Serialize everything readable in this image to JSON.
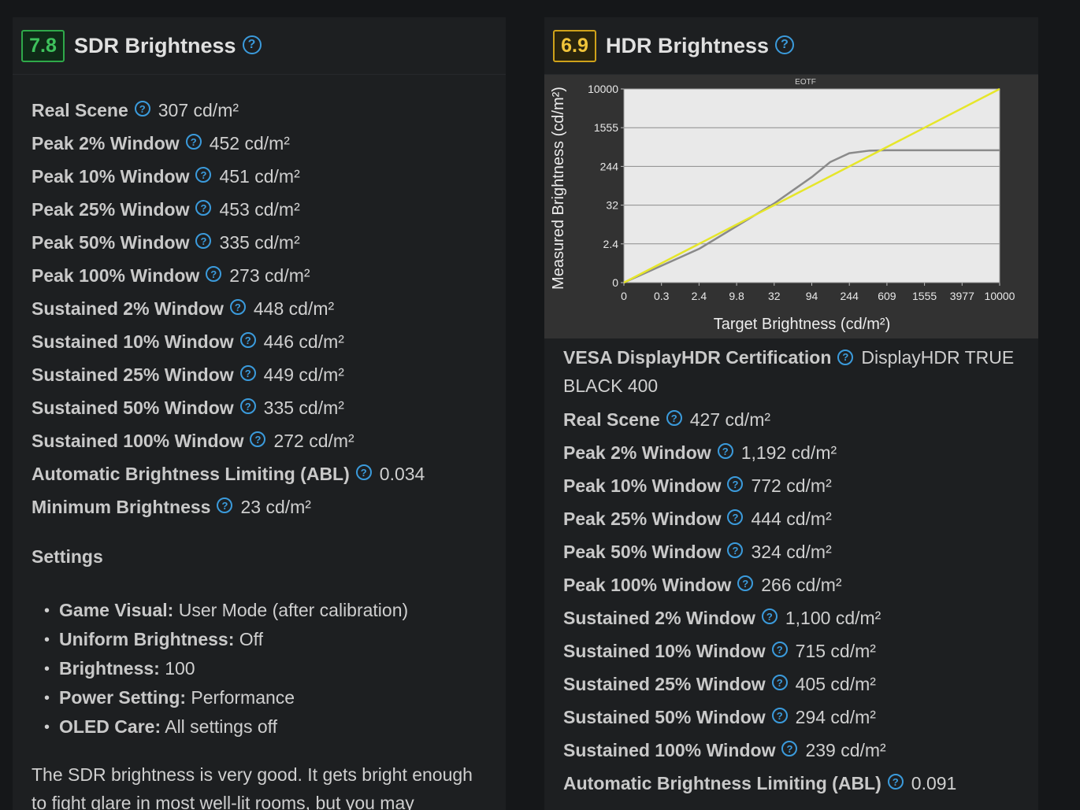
{
  "sdr": {
    "score": "7.8",
    "title": "SDR Brightness",
    "rows": [
      {
        "label": "Real Scene",
        "value": "307 cd/m²"
      },
      {
        "label": "Peak 2% Window",
        "value": "452 cd/m²"
      },
      {
        "label": "Peak 10% Window",
        "value": "451 cd/m²"
      },
      {
        "label": "Peak 25% Window",
        "value": "453 cd/m²"
      },
      {
        "label": "Peak 50% Window",
        "value": "335 cd/m²"
      },
      {
        "label": "Peak 100% Window",
        "value": "273 cd/m²"
      },
      {
        "label": "Sustained 2% Window",
        "value": "448 cd/m²"
      },
      {
        "label": "Sustained 10% Window",
        "value": "446 cd/m²"
      },
      {
        "label": "Sustained 25% Window",
        "value": "449 cd/m²"
      },
      {
        "label": "Sustained 50% Window",
        "value": "335 cd/m²"
      },
      {
        "label": "Sustained 100% Window",
        "value": "272 cd/m²"
      },
      {
        "label": "Automatic Brightness Limiting (ABL)",
        "value": "0.034"
      },
      {
        "label": "Minimum Brightness",
        "value": "23 cd/m²"
      }
    ],
    "settings_heading": "Settings",
    "settings": [
      {
        "key": "Game Visual:",
        "value": "User Mode (after calibration)"
      },
      {
        "key": "Uniform Brightness:",
        "value": "Off"
      },
      {
        "key": "Brightness:",
        "value": "100"
      },
      {
        "key": "Power Setting:",
        "value": "Performance"
      },
      {
        "key": "OLED Care:",
        "value": "All settings off"
      }
    ],
    "description": "The SDR brightness is very good. It gets bright enough to fight glare in most well-lit rooms, but you may"
  },
  "hdr": {
    "score": "6.9",
    "title": "HDR Brightness",
    "vesa_label": "VESA DisplayHDR Certification",
    "vesa_value": "DisplayHDR TRUE BLACK 400",
    "rows": [
      {
        "label": "Real Scene",
        "value": "427 cd/m²"
      },
      {
        "label": "Peak 2% Window",
        "value": "1,192 cd/m²"
      },
      {
        "label": "Peak 10% Window",
        "value": "772 cd/m²"
      },
      {
        "label": "Peak 25% Window",
        "value": "444 cd/m²"
      },
      {
        "label": "Peak 50% Window",
        "value": "324 cd/m²"
      },
      {
        "label": "Peak 100% Window",
        "value": "266 cd/m²"
      },
      {
        "label": "Sustained 2% Window",
        "value": "1,100 cd/m²"
      },
      {
        "label": "Sustained 10% Window",
        "value": "715 cd/m²"
      },
      {
        "label": "Sustained 25% Window",
        "value": "405 cd/m²"
      },
      {
        "label": "Sustained 50% Window",
        "value": "294 cd/m²"
      },
      {
        "label": "Sustained 100% Window",
        "value": "239 cd/m²"
      },
      {
        "label": "Automatic Brightness Limiting (ABL)",
        "value": "0.091"
      }
    ]
  },
  "help_glyph": "?",
  "chart_data": {
    "type": "line",
    "title": "EOTF",
    "xlabel": "Target Brightness (cd/m²)",
    "ylabel": "Measured Brightness (cd/m²)",
    "x_ticks": [
      "0",
      "0.3",
      "2.4",
      "9.8",
      "32",
      "94",
      "244",
      "609",
      "1555",
      "3977",
      "10000"
    ],
    "y_ticks": [
      "0",
      "2.4",
      "32",
      "244",
      "1555",
      "10000"
    ],
    "scale": "PQ (perceptual)",
    "grid": true,
    "colors": {
      "target": "#e6e62a",
      "measured": "#8a8a8a",
      "background": "#323232",
      "plot": "#e9e9e9"
    },
    "series": [
      {
        "x": [
          0,
          10000
        ],
        "values": [
          0,
          10000
        ]
      },
      {
        "x": [
          0,
          2.4,
          32,
          94,
          150,
          244,
          400,
          609,
          1555,
          10000
        ],
        "values": [
          0,
          1.9,
          35,
          140,
          300,
          460,
          520,
          530,
          530,
          530
        ]
      }
    ]
  }
}
